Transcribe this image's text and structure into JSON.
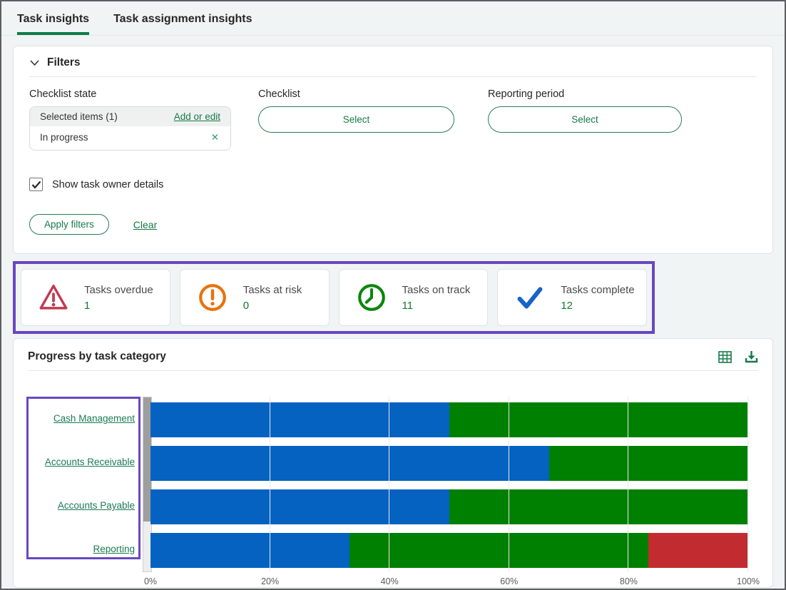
{
  "tabs": [
    {
      "label": "Task insights",
      "active": true
    },
    {
      "label": "Task assignment insights",
      "active": false
    }
  ],
  "filters": {
    "title": "Filters",
    "collapse_icon": "chevron-down-icon",
    "checklist_state": {
      "label": "Checklist state",
      "selected_count_text": "Selected items (1)",
      "add_or_edit_link": "Add or edit",
      "selected_item": "In progress",
      "remove_icon": "close-icon",
      "remove_icon_glyph": "✕"
    },
    "checklist": {
      "label": "Checklist",
      "select_button": "Select"
    },
    "reporting_period": {
      "label": "Reporting period",
      "select_button": "Select"
    },
    "show_task_owner": {
      "label": "Show task owner details",
      "checked": true
    },
    "apply_button": "Apply filters",
    "clear_link": "Clear"
  },
  "summary_cards": [
    {
      "label": "Tasks overdue",
      "value": "1",
      "icon": "warning-triangle-icon",
      "icon_color": "#C23A52"
    },
    {
      "label": "Tasks at risk",
      "value": "0",
      "icon": "alert-circle-icon",
      "icon_color": "#E8720C"
    },
    {
      "label": "Tasks on track",
      "value": "11",
      "icon": "clock-icon",
      "icon_color": "#0C860C"
    },
    {
      "label": "Tasks complete",
      "value": "12",
      "icon": "check-icon",
      "icon_color": "#1763C6"
    }
  ],
  "chart": {
    "title": "Progress by task category",
    "toolbar_icons": [
      "table-icon",
      "download-icon"
    ],
    "chart_data": {
      "type": "bar",
      "orientation": "horizontal",
      "stacked": true,
      "title": "Progress by task category",
      "categories": [
        "Cash Management",
        "Accounts Receivable",
        "Accounts Payable",
        "Reporting"
      ],
      "series": [
        {
          "name": "blue-segment",
          "color": "#0562C1",
          "values": [
            50,
            66.7,
            50,
            33.3
          ]
        },
        {
          "name": "green-segment",
          "color": "#008000",
          "values": [
            50,
            33.3,
            50,
            50.0
          ]
        },
        {
          "name": "red-segment",
          "color": "#C22B2F",
          "values": [
            0,
            0,
            0,
            16.7
          ]
        }
      ],
      "x_ticks": [
        "0%",
        "20%",
        "40%",
        "60%",
        "80%",
        "100%"
      ],
      "xlim": [
        0,
        100
      ],
      "grid": true,
      "legend": false
    }
  },
  "colors": {
    "accent_green": "#157A49",
    "tab_underline_green": "#0E7C45",
    "value_green": "#107C2E",
    "highlight_purple": "#6847C0",
    "bar_blue": "#0562C1",
    "bar_green": "#008000",
    "bar_red": "#C22B2F",
    "scrollbar_thumb": "#9E9E9E"
  }
}
